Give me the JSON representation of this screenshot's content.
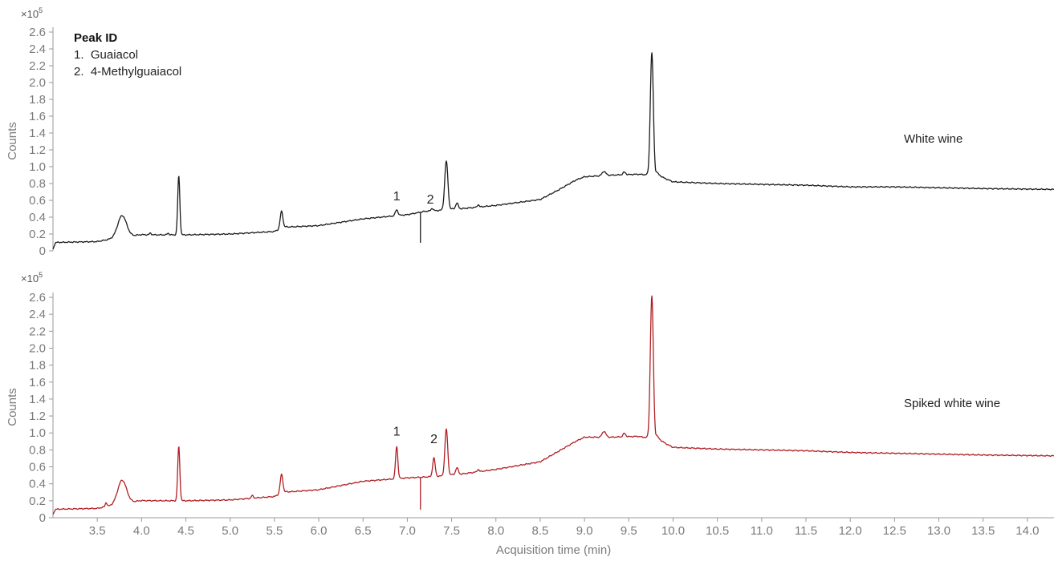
{
  "chart_data": [
    {
      "type": "line",
      "panel": "top",
      "title": "",
      "multiplier": "×10",
      "multiplier_exp": "5",
      "ylabel": "Counts",
      "xlabel": "",
      "xlim": [
        3.0,
        14.3
      ],
      "ylim": [
        0,
        2.6
      ],
      "y_ticks": [
        "0",
        "0.2",
        "0.4",
        "0.6",
        "0.8",
        "1.0",
        "1.2",
        "1.4",
        "1.6",
        "1.8",
        "2.0",
        "2.2",
        "2.4",
        "2.6"
      ],
      "legend": {
        "position": "top-left",
        "title": "Peak ID",
        "items": [
          "1.  Guaiacol",
          "2.  4-Methylguaiacol"
        ]
      },
      "series_label": "White wine",
      "color": "#1a1a1a",
      "baseline": [
        [
          3.0,
          0.02
        ],
        [
          3.03,
          0.1
        ],
        [
          3.5,
          0.11
        ],
        [
          3.65,
          0.14
        ],
        [
          4.0,
          0.19
        ],
        [
          4.5,
          0.19
        ],
        [
          5.0,
          0.2
        ],
        [
          5.5,
          0.23
        ],
        [
          5.6,
          0.28
        ],
        [
          6.0,
          0.3
        ],
        [
          6.5,
          0.38
        ],
        [
          7.0,
          0.43
        ],
        [
          7.2,
          0.47
        ],
        [
          7.5,
          0.49
        ],
        [
          8.0,
          0.54
        ],
        [
          8.5,
          0.61
        ],
        [
          8.7,
          0.72
        ],
        [
          8.9,
          0.84
        ],
        [
          9.0,
          0.88
        ],
        [
          9.3,
          0.9
        ],
        [
          9.6,
          0.91
        ],
        [
          9.8,
          0.9
        ],
        [
          10.0,
          0.82
        ],
        [
          10.5,
          0.8
        ],
        [
          11.0,
          0.79
        ],
        [
          11.5,
          0.78
        ],
        [
          12.0,
          0.76
        ],
        [
          12.5,
          0.76
        ],
        [
          13.0,
          0.75
        ],
        [
          13.5,
          0.74
        ],
        [
          14.3,
          0.73
        ]
      ],
      "peaks": [
        {
          "x": 3.78,
          "height": 0.26,
          "width": 0.05,
          "tail": 0.09
        },
        {
          "x": 4.42,
          "height": 0.7,
          "width": 0.012
        },
        {
          "x": 4.1,
          "height": 0.02,
          "width": 0.01
        },
        {
          "x": 4.3,
          "height": 0.02,
          "width": 0.01
        },
        {
          "x": 5.58,
          "height": 0.2,
          "width": 0.015,
          "tail": 0.03
        },
        {
          "x": 6.88,
          "height": 0.07,
          "width": 0.015
        },
        {
          "x": 7.28,
          "height": 0.03,
          "width": 0.012
        },
        {
          "x": 7.44,
          "height": 0.58,
          "width": 0.018,
          "tail": 0.03
        },
        {
          "x": 7.56,
          "height": 0.07,
          "width": 0.015
        },
        {
          "x": 7.8,
          "height": 0.03,
          "width": 0.01
        },
        {
          "x": 9.22,
          "height": 0.05,
          "width": 0.02
        },
        {
          "x": 9.45,
          "height": 0.03,
          "width": 0.015
        },
        {
          "x": 9.76,
          "height": 1.45,
          "width": 0.017,
          "tail": 0.04
        }
      ],
      "spike": {
        "x": 7.15,
        "low": 0.1
      },
      "peak_labels": [
        {
          "text": "1",
          "x": 6.88,
          "y": 0.6
        },
        {
          "text": "2",
          "x": 7.26,
          "y": 0.56
        }
      ]
    },
    {
      "type": "line",
      "panel": "bottom",
      "title": "",
      "multiplier": "×10",
      "multiplier_exp": "5",
      "ylabel": "Counts",
      "xlabel": "Acquisition time (min)",
      "xlim": [
        3.0,
        14.3
      ],
      "ylim": [
        0,
        2.6
      ],
      "y_ticks": [
        "0",
        "0.2",
        "0.4",
        "0.6",
        "0.8",
        "1.0",
        "1.2",
        "1.4",
        "1.6",
        "1.8",
        "2.0",
        "2.2",
        "2.4",
        "2.6"
      ],
      "x_ticks": [
        "3.5",
        "4.0",
        "4.5",
        "5.0",
        "5.5",
        "6.0",
        "6.5",
        "7.0",
        "7.5",
        "8.0",
        "8.5",
        "9.0",
        "9.5",
        "10.0",
        "10.5",
        "11.0",
        "11.5",
        "12.0",
        "12.5",
        "13.0",
        "13.5",
        "14.0"
      ],
      "series_label": "Spiked white wine",
      "color": "#b01e23",
      "baseline": [
        [
          3.0,
          0.04
        ],
        [
          3.03,
          0.1
        ],
        [
          3.5,
          0.11
        ],
        [
          3.65,
          0.14
        ],
        [
          4.0,
          0.2
        ],
        [
          4.5,
          0.2
        ],
        [
          5.0,
          0.21
        ],
        [
          5.5,
          0.25
        ],
        [
          5.6,
          0.3
        ],
        [
          6.0,
          0.33
        ],
        [
          6.5,
          0.43
        ],
        [
          7.0,
          0.47
        ],
        [
          7.2,
          0.48
        ],
        [
          7.5,
          0.5
        ],
        [
          8.0,
          0.57
        ],
        [
          8.5,
          0.66
        ],
        [
          8.7,
          0.78
        ],
        [
          8.9,
          0.9
        ],
        [
          9.0,
          0.95
        ],
        [
          9.3,
          0.95
        ],
        [
          9.6,
          0.96
        ],
        [
          9.8,
          0.93
        ],
        [
          10.0,
          0.83
        ],
        [
          10.5,
          0.81
        ],
        [
          11.0,
          0.8
        ],
        [
          11.5,
          0.79
        ],
        [
          12.0,
          0.77
        ],
        [
          12.5,
          0.76
        ],
        [
          13.0,
          0.75
        ],
        [
          13.5,
          0.74
        ],
        [
          14.3,
          0.73
        ]
      ],
      "peaks": [
        {
          "x": 3.6,
          "height": 0.05,
          "width": 0.01
        },
        {
          "x": 3.78,
          "height": 0.28,
          "width": 0.05,
          "tail": 0.09
        },
        {
          "x": 4.42,
          "height": 0.64,
          "width": 0.012
        },
        {
          "x": 5.25,
          "height": 0.03,
          "width": 0.012
        },
        {
          "x": 5.58,
          "height": 0.22,
          "width": 0.015,
          "tail": 0.03
        },
        {
          "x": 6.88,
          "height": 0.38,
          "width": 0.013
        },
        {
          "x": 7.3,
          "height": 0.22,
          "width": 0.014
        },
        {
          "x": 7.44,
          "height": 0.55,
          "width": 0.016,
          "tail": 0.03
        },
        {
          "x": 7.56,
          "height": 0.08,
          "width": 0.015
        },
        {
          "x": 7.8,
          "height": 0.03,
          "width": 0.01
        },
        {
          "x": 9.22,
          "height": 0.07,
          "width": 0.02
        },
        {
          "x": 9.45,
          "height": 0.04,
          "width": 0.015
        },
        {
          "x": 9.76,
          "height": 1.68,
          "width": 0.017,
          "tail": 0.04
        }
      ],
      "spike": {
        "x": 7.15,
        "low": 0.1
      },
      "peak_labels": [
        {
          "text": "1",
          "x": 6.88,
          "y": 0.97
        },
        {
          "text": "2",
          "x": 7.3,
          "y": 0.88
        }
      ]
    }
  ]
}
